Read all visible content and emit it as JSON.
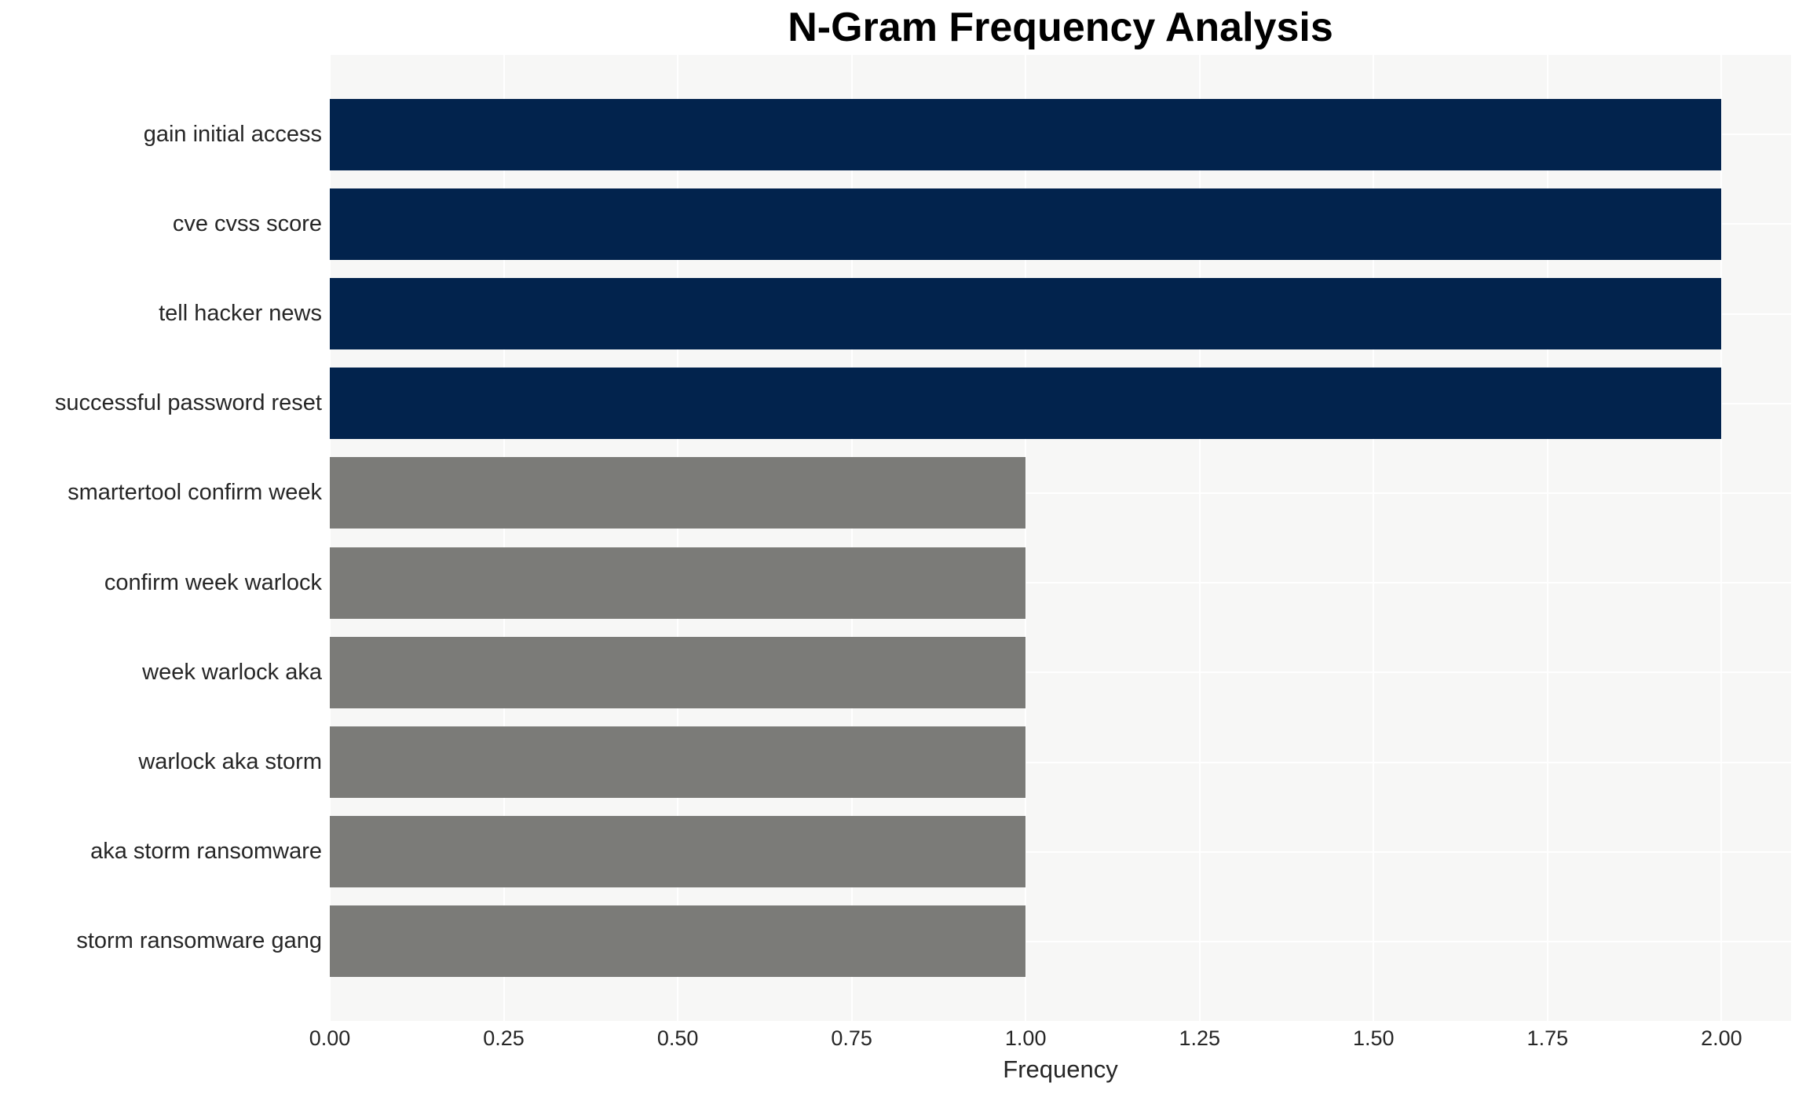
{
  "colors": {
    "bar_high": "#02234d",
    "bar_low": "#7b7b78",
    "plot_background": "#f7f7f6",
    "gridline": "#ffffff",
    "text": "#262626",
    "title_text": "#000000"
  },
  "chart_data": {
    "type": "bar",
    "orientation": "horizontal",
    "title": "N-Gram Frequency Analysis",
    "xlabel": "Frequency",
    "ylabel": "",
    "categories": [
      "gain initial access",
      "cve cvss score",
      "tell hacker news",
      "successful password reset",
      "smartertool confirm week",
      "confirm week warlock",
      "week warlock aka",
      "warlock aka storm",
      "aka storm ransomware",
      "storm ransomware gang"
    ],
    "values": [
      2,
      2,
      2,
      2,
      1,
      1,
      1,
      1,
      1,
      1
    ],
    "bar_colors": [
      "#02234d",
      "#02234d",
      "#02234d",
      "#02234d",
      "#7b7b78",
      "#7b7b78",
      "#7b7b78",
      "#7b7b78",
      "#7b7b78",
      "#7b7b78"
    ],
    "xlim": [
      0,
      2.1
    ],
    "xticks": [
      0,
      0.25,
      0.5,
      0.75,
      1.0,
      1.25,
      1.5,
      1.75,
      2.0
    ],
    "xtick_labels": [
      "0.00",
      "0.25",
      "0.50",
      "0.75",
      "1.00",
      "1.25",
      "1.50",
      "1.75",
      "2.00"
    ],
    "grid": true,
    "legend": false
  }
}
